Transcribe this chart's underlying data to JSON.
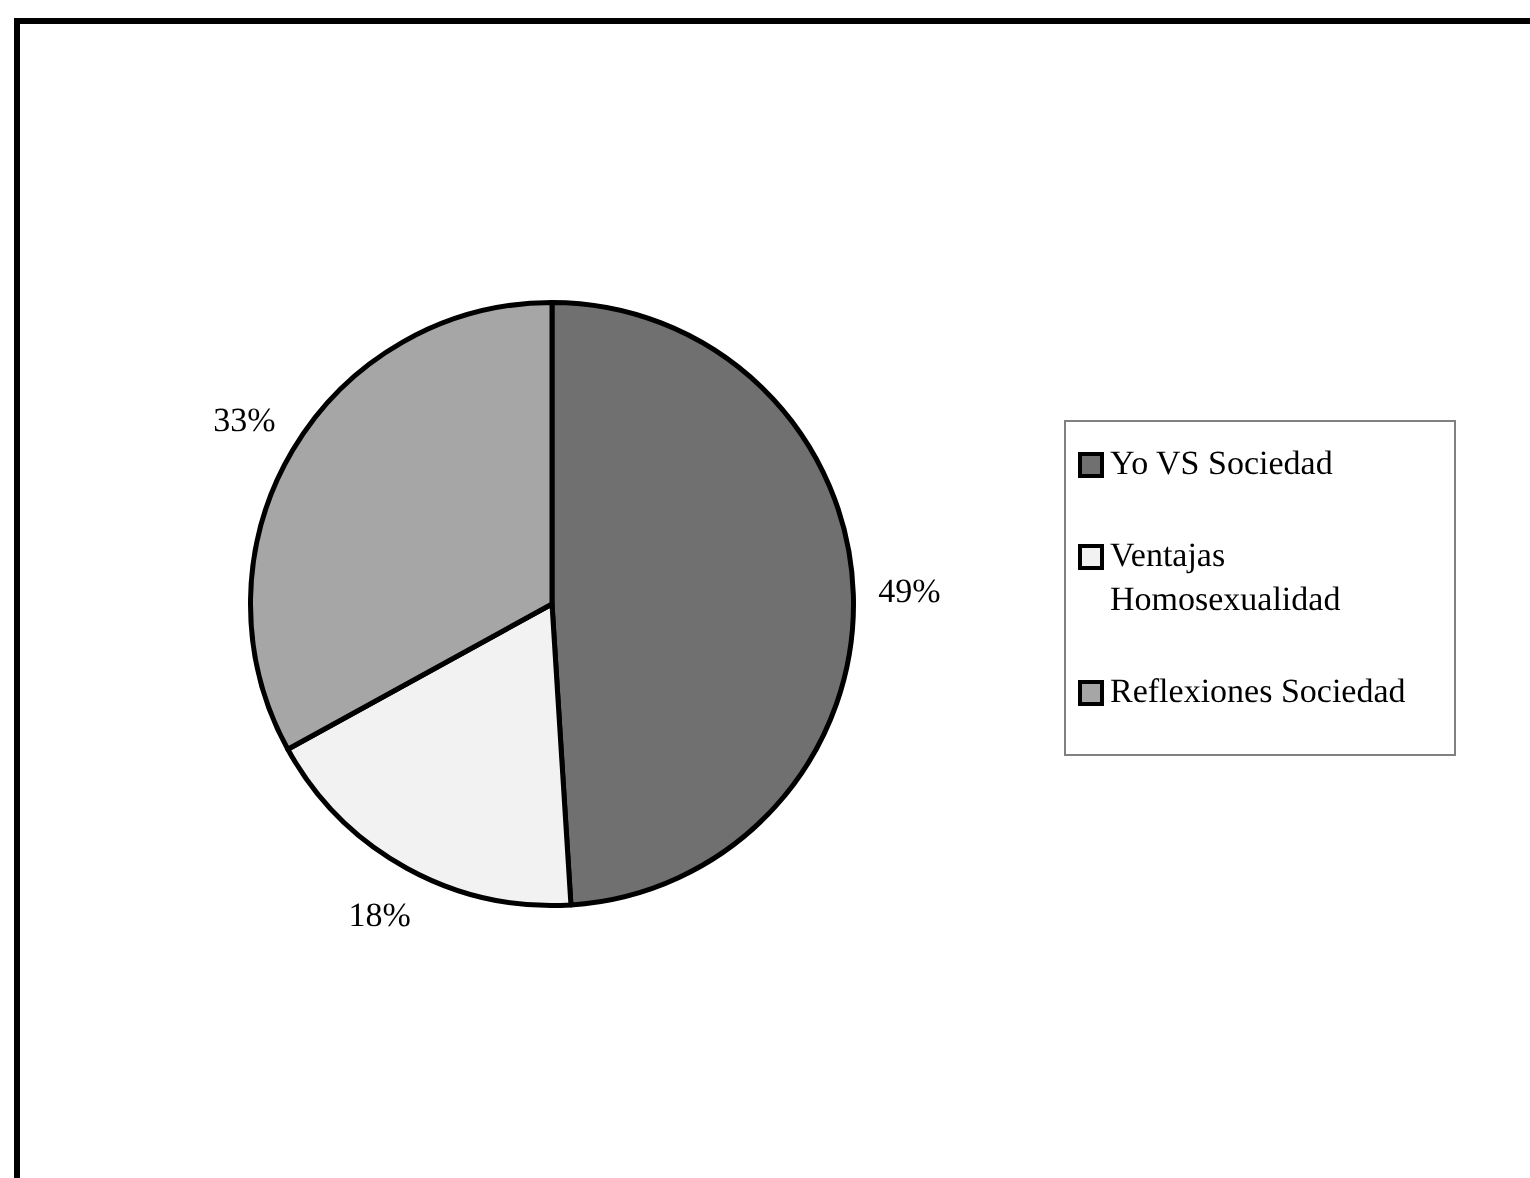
{
  "chart_data": {
    "type": "pie",
    "categories": [
      "Yo VS Sociedad",
      "Ventajas Homosexualidad",
      "Reflexiones Sociedad"
    ],
    "values": [
      49,
      18,
      33
    ],
    "colors": [
      "#707070",
      "#f2f2f2",
      "#a6a6a6"
    ],
    "value_labels": [
      "49%",
      "18%",
      "33%"
    ],
    "legend": "right"
  }
}
